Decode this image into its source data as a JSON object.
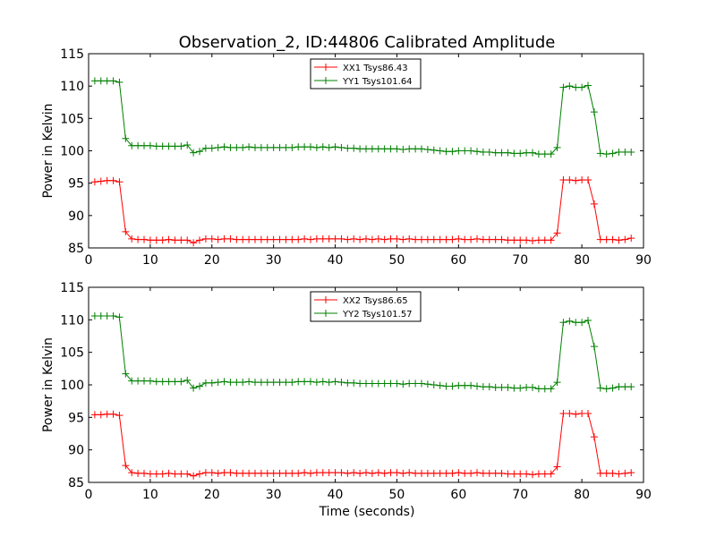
{
  "figure": {
    "title": "Observation_2, ID:44806 Calibrated Amplitude",
    "xlabel": "Time (seconds)"
  },
  "chart_data": [
    {
      "type": "line",
      "ylabel": "Power in Kelvin",
      "xlim": [
        0,
        90
      ],
      "ylim": [
        85,
        115
      ],
      "xticks": [
        0,
        10,
        20,
        30,
        40,
        50,
        60,
        70,
        80,
        90
      ],
      "yticks": [
        85,
        90,
        95,
        100,
        105,
        110,
        115
      ],
      "legend_position": "top-center",
      "grid": false,
      "x": [
        1,
        2,
        3,
        4,
        5,
        6,
        7,
        8,
        9,
        10,
        11,
        12,
        13,
        14,
        15,
        16,
        17,
        18,
        19,
        20,
        21,
        22,
        23,
        24,
        25,
        26,
        27,
        28,
        29,
        30,
        31,
        32,
        33,
        34,
        35,
        36,
        37,
        38,
        39,
        40,
        41,
        42,
        43,
        44,
        45,
        46,
        47,
        48,
        49,
        50,
        51,
        52,
        53,
        54,
        55,
        56,
        57,
        58,
        59,
        60,
        61,
        62,
        63,
        64,
        65,
        66,
        67,
        68,
        69,
        70,
        71,
        72,
        73,
        74,
        75,
        76,
        77,
        78,
        79,
        80,
        81,
        82,
        83,
        84,
        85,
        86,
        87,
        88
      ],
      "series": [
        {
          "name": "XX1 Tsys86.43",
          "color": "#ff0000",
          "values": [
            95.2,
            95.3,
            95.4,
            95.4,
            95.2,
            87.5,
            86.4,
            86.3,
            86.3,
            86.2,
            86.2,
            86.2,
            86.3,
            86.2,
            86.2,
            86.2,
            85.8,
            86.2,
            86.4,
            86.4,
            86.3,
            86.4,
            86.4,
            86.3,
            86.3,
            86.3,
            86.3,
            86.3,
            86.3,
            86.3,
            86.3,
            86.3,
            86.3,
            86.3,
            86.4,
            86.3,
            86.4,
            86.4,
            86.4,
            86.4,
            86.4,
            86.3,
            86.4,
            86.3,
            86.4,
            86.3,
            86.4,
            86.3,
            86.4,
            86.4,
            86.3,
            86.4,
            86.3,
            86.3,
            86.3,
            86.3,
            86.3,
            86.3,
            86.3,
            86.4,
            86.3,
            86.3,
            86.4,
            86.3,
            86.3,
            86.3,
            86.3,
            86.2,
            86.2,
            86.2,
            86.2,
            86.1,
            86.2,
            86.2,
            86.2,
            87.3,
            95.5,
            95.5,
            95.4,
            95.5,
            95.5,
            91.8,
            86.3,
            86.3,
            86.3,
            86.2,
            86.3,
            86.5
          ]
        },
        {
          "name": "YY1 Tsys101.64",
          "color": "#008000",
          "values": [
            110.8,
            110.8,
            110.8,
            110.8,
            110.6,
            101.9,
            100.8,
            100.8,
            100.8,
            100.8,
            100.7,
            100.7,
            100.7,
            100.7,
            100.7,
            100.9,
            99.7,
            99.9,
            100.4,
            100.4,
            100.5,
            100.6,
            100.5,
            100.5,
            100.5,
            100.6,
            100.5,
            100.5,
            100.5,
            100.5,
            100.5,
            100.5,
            100.5,
            100.6,
            100.6,
            100.6,
            100.5,
            100.6,
            100.5,
            100.6,
            100.5,
            100.4,
            100.4,
            100.3,
            100.3,
            100.3,
            100.3,
            100.3,
            100.3,
            100.3,
            100.2,
            100.3,
            100.3,
            100.3,
            100.2,
            100.1,
            100.0,
            99.9,
            99.9,
            100.0,
            100.0,
            100.0,
            99.9,
            99.8,
            99.8,
            99.7,
            99.7,
            99.7,
            99.6,
            99.6,
            99.7,
            99.7,
            99.5,
            99.5,
            99.5,
            100.5,
            109.8,
            110.0,
            109.8,
            109.8,
            110.1,
            106.0,
            99.6,
            99.5,
            99.6,
            99.8,
            99.8,
            99.8
          ]
        }
      ]
    },
    {
      "type": "line",
      "ylabel": "Power in Kelvin",
      "xlabel": "Time (seconds)",
      "xlim": [
        0,
        90
      ],
      "ylim": [
        85,
        115
      ],
      "xticks": [
        0,
        10,
        20,
        30,
        40,
        50,
        60,
        70,
        80,
        90
      ],
      "yticks": [
        85,
        90,
        95,
        100,
        105,
        110,
        115
      ],
      "legend_position": "top-center",
      "grid": false,
      "x": [
        1,
        2,
        3,
        4,
        5,
        6,
        7,
        8,
        9,
        10,
        11,
        12,
        13,
        14,
        15,
        16,
        17,
        18,
        19,
        20,
        21,
        22,
        23,
        24,
        25,
        26,
        27,
        28,
        29,
        30,
        31,
        32,
        33,
        34,
        35,
        36,
        37,
        38,
        39,
        40,
        41,
        42,
        43,
        44,
        45,
        46,
        47,
        48,
        49,
        50,
        51,
        52,
        53,
        54,
        55,
        56,
        57,
        58,
        59,
        60,
        61,
        62,
        63,
        64,
        65,
        66,
        67,
        68,
        69,
        70,
        71,
        72,
        73,
        74,
        75,
        76,
        77,
        78,
        79,
        80,
        81,
        82,
        83,
        84,
        85,
        86,
        87,
        88
      ],
      "series": [
        {
          "name": "XX2 Tsys86.65",
          "color": "#ff0000",
          "values": [
            95.4,
            95.4,
            95.5,
            95.5,
            95.3,
            87.6,
            86.5,
            86.4,
            86.4,
            86.3,
            86.3,
            86.3,
            86.4,
            86.3,
            86.3,
            86.3,
            86.0,
            86.3,
            86.5,
            86.5,
            86.4,
            86.5,
            86.5,
            86.4,
            86.4,
            86.4,
            86.4,
            86.4,
            86.4,
            86.4,
            86.4,
            86.4,
            86.4,
            86.4,
            86.5,
            86.4,
            86.5,
            86.5,
            86.5,
            86.5,
            86.5,
            86.4,
            86.5,
            86.4,
            86.5,
            86.4,
            86.5,
            86.4,
            86.5,
            86.5,
            86.4,
            86.5,
            86.4,
            86.4,
            86.4,
            86.4,
            86.4,
            86.4,
            86.4,
            86.5,
            86.4,
            86.4,
            86.5,
            86.4,
            86.4,
            86.4,
            86.4,
            86.3,
            86.3,
            86.3,
            86.3,
            86.2,
            86.3,
            86.3,
            86.3,
            87.4,
            95.6,
            95.6,
            95.5,
            95.6,
            95.6,
            92.0,
            86.4,
            86.4,
            86.4,
            86.3,
            86.4,
            86.5
          ]
        },
        {
          "name": "YY2 Tsys101.57",
          "color": "#008000",
          "values": [
            110.6,
            110.6,
            110.6,
            110.6,
            110.4,
            101.7,
            100.6,
            100.6,
            100.6,
            100.6,
            100.5,
            100.5,
            100.5,
            100.5,
            100.5,
            100.7,
            99.5,
            99.8,
            100.3,
            100.3,
            100.4,
            100.5,
            100.4,
            100.4,
            100.4,
            100.5,
            100.4,
            100.4,
            100.4,
            100.4,
            100.4,
            100.4,
            100.4,
            100.5,
            100.5,
            100.5,
            100.4,
            100.5,
            100.4,
            100.5,
            100.4,
            100.3,
            100.3,
            100.2,
            100.2,
            100.2,
            100.2,
            100.2,
            100.2,
            100.2,
            100.1,
            100.2,
            100.2,
            100.2,
            100.1,
            100.0,
            99.9,
            99.8,
            99.8,
            99.9,
            99.9,
            99.9,
            99.8,
            99.7,
            99.7,
            99.6,
            99.6,
            99.6,
            99.5,
            99.5,
            99.6,
            99.6,
            99.4,
            99.4,
            99.4,
            100.4,
            109.6,
            109.8,
            109.6,
            109.6,
            109.9,
            105.9,
            99.5,
            99.4,
            99.5,
            99.7,
            99.7,
            99.7
          ]
        }
      ]
    }
  ]
}
